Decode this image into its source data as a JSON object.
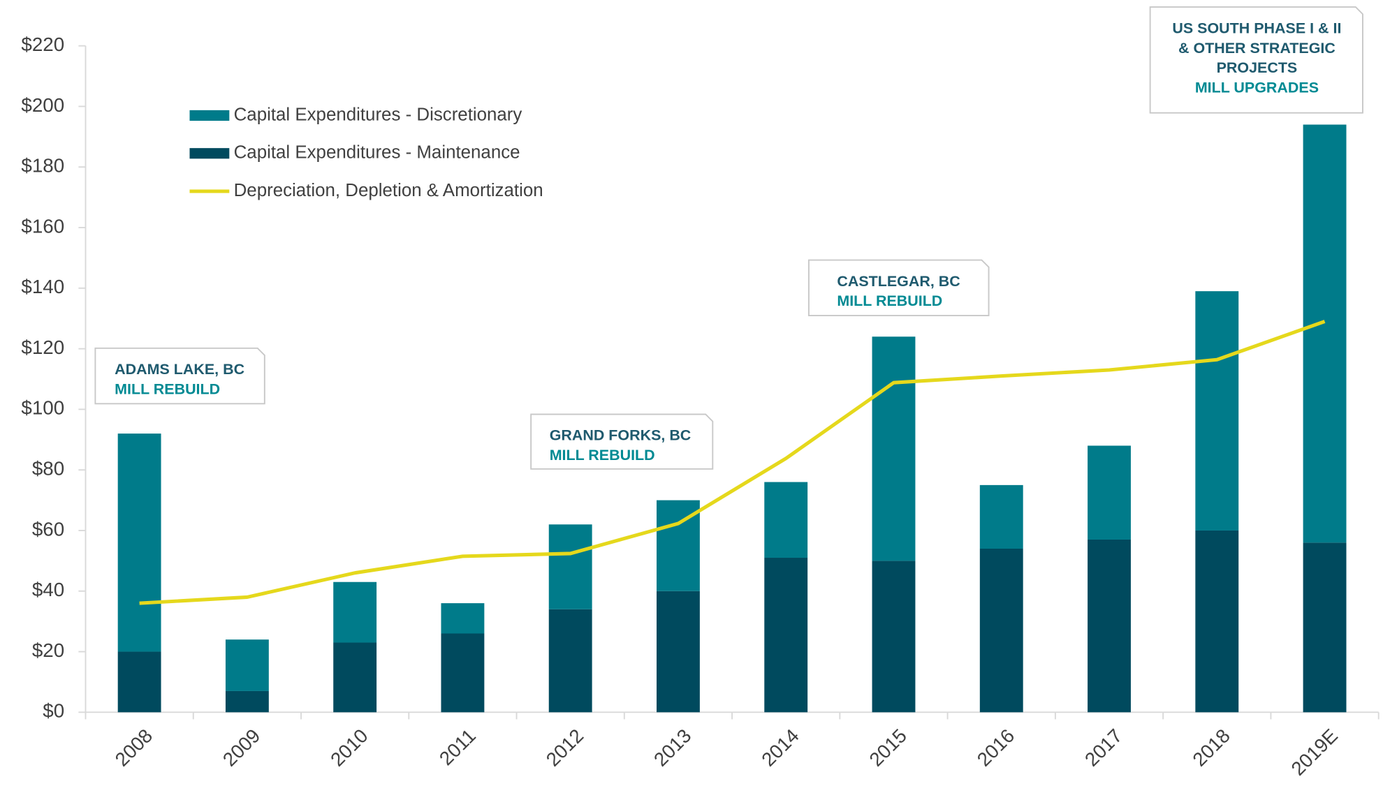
{
  "chart_data": {
    "type": "stacked-bar-line",
    "categories": [
      "2008",
      "2009",
      "2010",
      "2011",
      "2012",
      "2013",
      "2014",
      "2015",
      "2016",
      "2017",
      "2018",
      "2019E"
    ],
    "series": [
      {
        "name": "Capital Expenditures - Discretionary",
        "color": "#007b8a",
        "kind": "bar",
        "values": [
          72,
          17,
          20,
          10,
          28,
          30,
          25,
          74,
          21,
          31,
          79,
          138
        ]
      },
      {
        "name": "Capital Expenditures - Maintenance",
        "color": "#004a5e",
        "kind": "bar",
        "values": [
          20,
          7,
          23,
          26,
          34,
          40,
          51,
          50,
          54,
          57,
          60,
          56
        ]
      },
      {
        "name": "Depreciation, Depletion & Amortization",
        "color": "#e5d81c",
        "kind": "line",
        "values": [
          36,
          38,
          46,
          51.5,
          52.4,
          62.3,
          83.8,
          108.8,
          111,
          113,
          116.4,
          129
        ]
      }
    ],
    "ylim": [
      0,
      220
    ],
    "yticks": [
      {
        "value": 0,
        "label": "$0"
      },
      {
        "value": 20,
        "label": "$20"
      },
      {
        "value": 40,
        "label": "$40"
      },
      {
        "value": 60,
        "label": "$60"
      },
      {
        "value": 80,
        "label": "$80"
      },
      {
        "value": 100,
        "label": "$100"
      },
      {
        "value": 120,
        "label": "$120"
      },
      {
        "value": 140,
        "label": "$140"
      },
      {
        "value": 160,
        "label": "$160"
      },
      {
        "value": 180,
        "label": "$180"
      },
      {
        "value": 200,
        "label": "$200"
      },
      {
        "value": 220,
        "label": "$220"
      }
    ],
    "legend": "top-left",
    "annotations": [
      {
        "lines": [
          "ADAMS LAKE, BC"
        ],
        "detail": "MILL REBUILD"
      },
      {
        "lines": [
          "GRAND FORKS, BC"
        ],
        "detail": "MILL REBUILD"
      },
      {
        "lines": [
          "CASTLEGAR, BC"
        ],
        "detail": "MILL REBUILD"
      },
      {
        "lines": [
          "US SOUTH PHASE I & II",
          "& OTHER STRATEGIC",
          "PROJECTS"
        ],
        "detail": "MILL UPGRADES"
      }
    ]
  }
}
